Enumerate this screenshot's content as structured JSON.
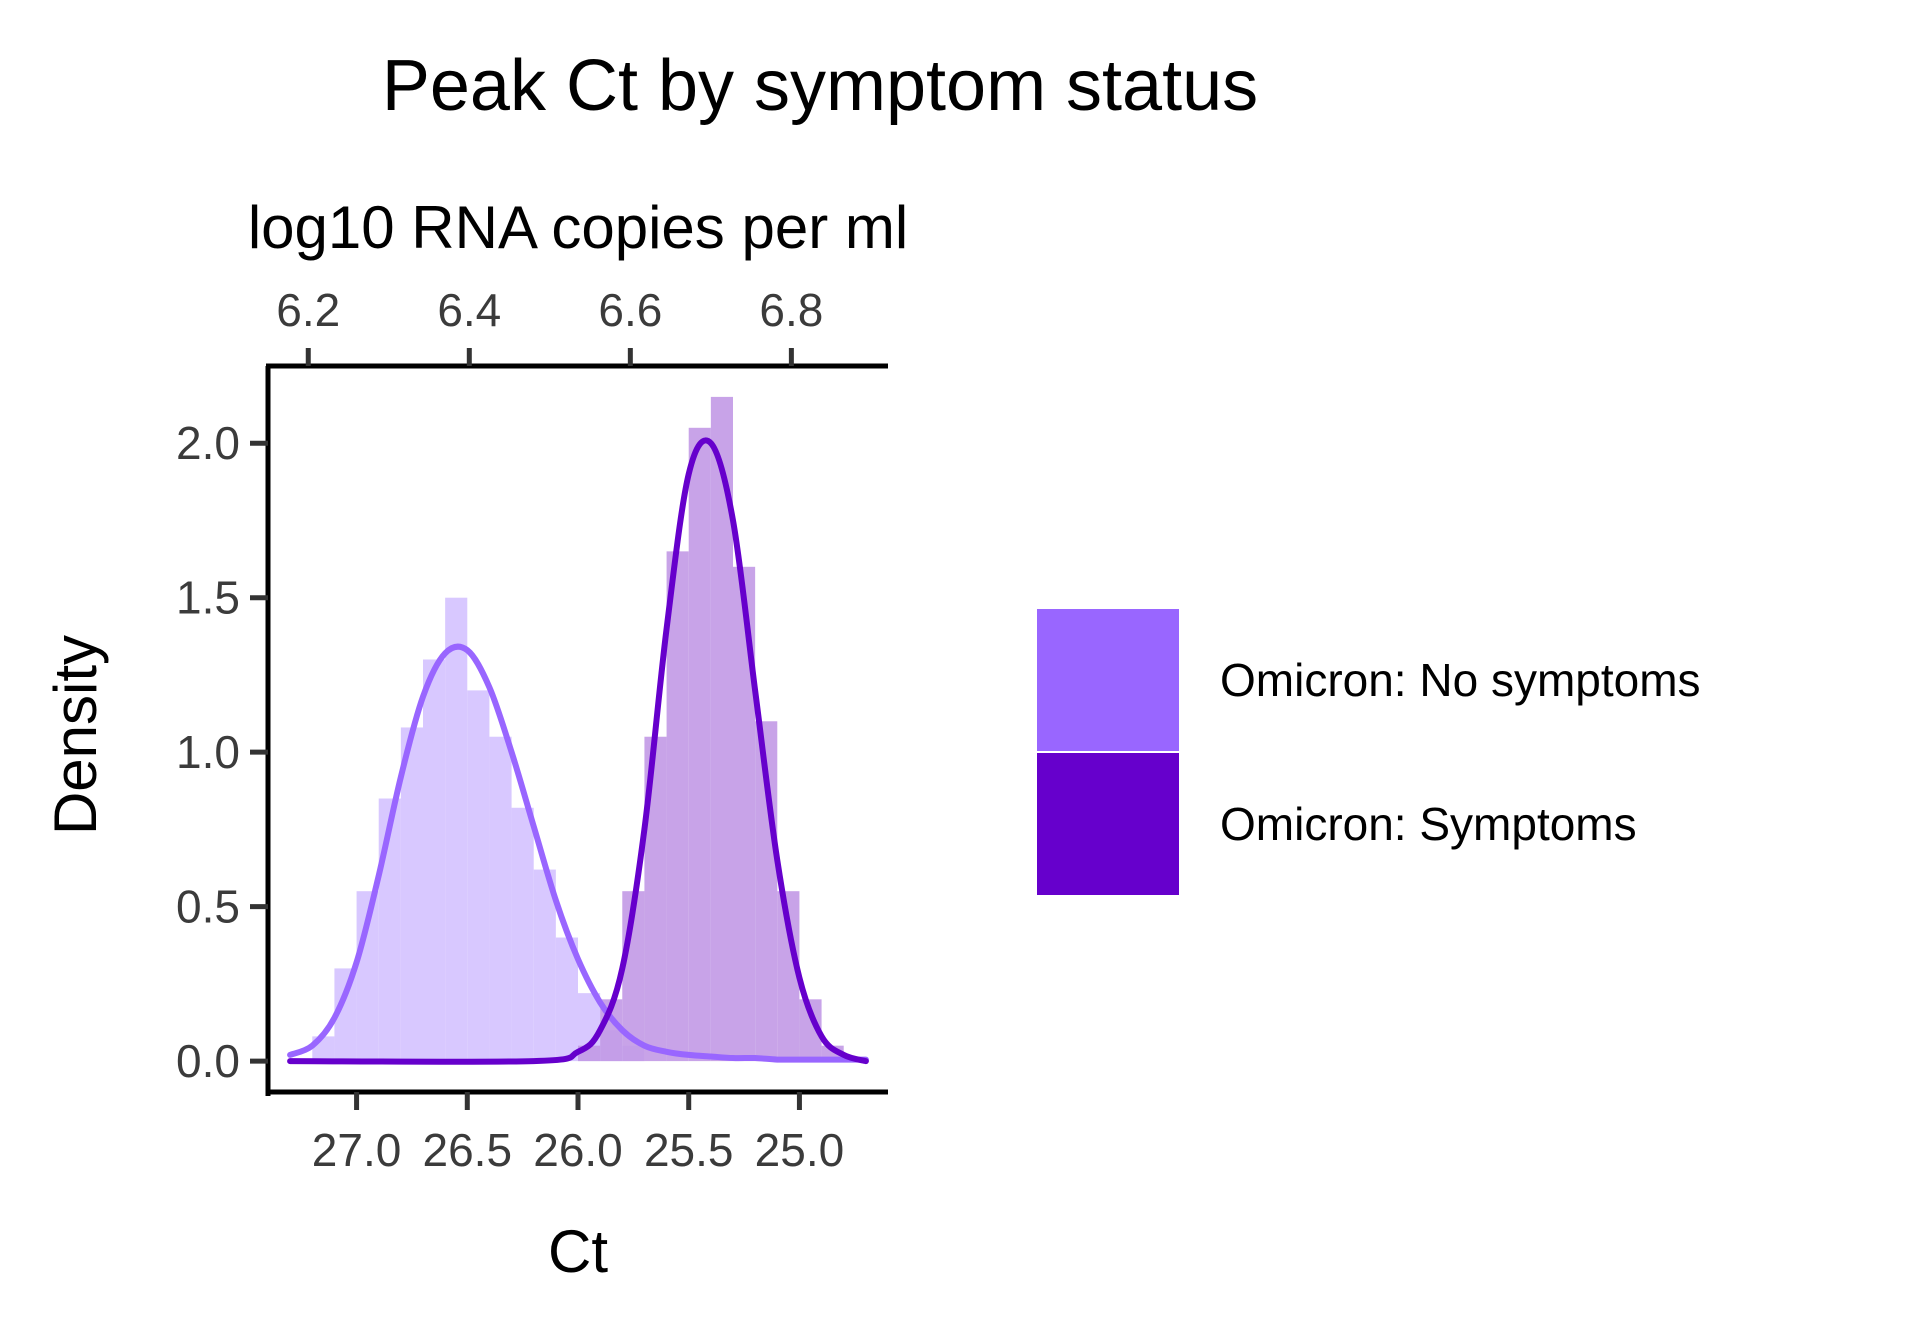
{
  "chart_data": {
    "type": "area",
    "title": "Peak Ct by symptom status",
    "xlabel": "Ct",
    "x2label": "log10 RNA copies per ml",
    "ylabel": "Density",
    "x_reversed": true,
    "xlim": [
      27.4,
      24.6
    ],
    "ylim": [
      -0.1,
      2.25
    ],
    "x_ticks": [
      27.0,
      26.5,
      26.0,
      25.5,
      25.0
    ],
    "x_tick_labels": [
      "27.0",
      "26.5",
      "26.0",
      "25.5",
      "25.0"
    ],
    "x2_ticks": [
      6.2,
      6.4,
      6.6,
      6.8
    ],
    "x2_tick_labels": [
      "6.2",
      "6.4",
      "6.6",
      "6.8"
    ],
    "x2lim": [
      6.15,
      6.92
    ],
    "y_ticks": [
      0.0,
      0.5,
      1.0,
      1.5,
      2.0
    ],
    "y_tick_labels": [
      "0.0",
      "0.5",
      "1.0",
      "1.5",
      "2.0"
    ],
    "legend_position": "right",
    "series": [
      {
        "name": "Omicron: No symptoms",
        "color": "#9966ff",
        "hist_fill": "#d4c2ff",
        "density_x": [
          27.3,
          27.2,
          27.1,
          27.0,
          26.9,
          26.8,
          26.7,
          26.6,
          26.5,
          26.4,
          26.3,
          26.2,
          26.1,
          26.0,
          25.9,
          25.8,
          25.7,
          25.6,
          25.5,
          25.4,
          25.3,
          25.2,
          25.1,
          25.0,
          24.9,
          24.8,
          24.7
        ],
        "density_y": [
          0.02,
          0.05,
          0.14,
          0.32,
          0.6,
          0.92,
          1.18,
          1.32,
          1.33,
          1.21,
          1.0,
          0.76,
          0.52,
          0.33,
          0.19,
          0.1,
          0.05,
          0.03,
          0.02,
          0.015,
          0.01,
          0.01,
          0.005,
          0.005,
          0.005,
          0.005,
          0.005
        ],
        "hist_x": [
          27.15,
          27.05,
          26.95,
          26.85,
          26.75,
          26.65,
          26.55,
          26.45,
          26.35,
          26.25,
          26.15,
          26.05,
          25.95,
          25.85,
          25.75
        ],
        "hist_y": [
          0.08,
          0.3,
          0.55,
          0.85,
          1.08,
          1.3,
          1.5,
          1.2,
          1.05,
          0.82,
          0.62,
          0.4,
          0.22,
          0.1,
          0.05
        ]
      },
      {
        "name": "Omicron: Symptoms",
        "color": "#6600cc",
        "hist_fill": "#c299e6",
        "density_x": [
          27.3,
          26.2,
          26.0,
          25.9,
          25.8,
          25.7,
          25.6,
          25.5,
          25.4,
          25.3,
          25.2,
          25.1,
          25.0,
          24.9,
          24.8,
          24.7
        ],
        "density_y": [
          0.0,
          0.0,
          0.03,
          0.1,
          0.3,
          0.75,
          1.4,
          1.9,
          2.0,
          1.75,
          1.2,
          0.65,
          0.27,
          0.08,
          0.02,
          0.0
        ],
        "hist_x": [
          25.95,
          25.85,
          25.75,
          25.65,
          25.55,
          25.45,
          25.35,
          25.25,
          25.15,
          25.05,
          24.95,
          24.85
        ],
        "hist_y": [
          0.05,
          0.2,
          0.55,
          1.05,
          1.65,
          2.05,
          2.15,
          1.6,
          1.1,
          0.55,
          0.2,
          0.05
        ]
      }
    ]
  }
}
